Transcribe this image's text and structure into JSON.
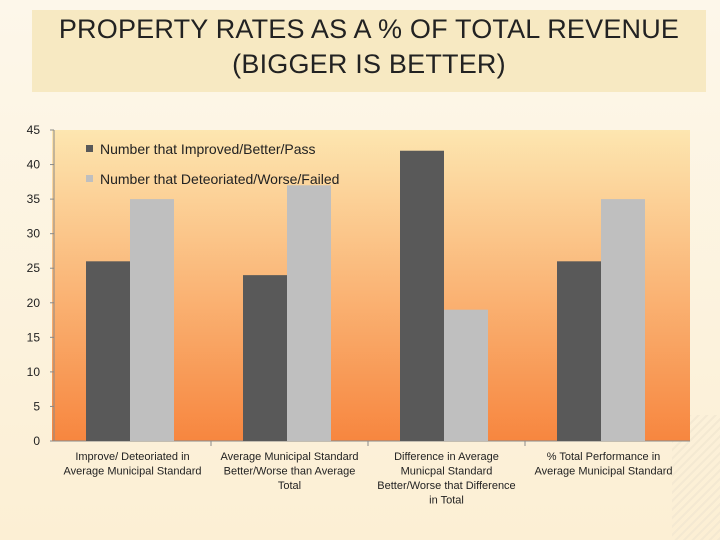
{
  "title": {
    "line1": "PROPERTY RATES AS A % OF TOTAL REVENUE",
    "line2": "(BIGGER IS BETTER)"
  },
  "chart_data": {
    "type": "bar",
    "categories": [
      [
        "Improve/ Deteoriated in",
        "Average Municipal Standard"
      ],
      [
        "Average Municipal Standard",
        "Better/Worse than Average",
        "Total"
      ],
      [
        "Difference in Average",
        "Municpal Standard",
        "Better/Worse that Difference",
        "in Total"
      ],
      [
        "% Total Performance in",
        "Average Municipal Standard"
      ]
    ],
    "series": [
      {
        "name": "Number that Improved/Better/Pass",
        "values": [
          26,
          24,
          42,
          26
        ],
        "color": "#595959"
      },
      {
        "name": "Number that Deteoriated/Worse/Failed",
        "values": [
          35,
          37,
          19,
          35
        ],
        "color": "#bfbfbf"
      }
    ],
    "ylim": [
      0,
      45
    ],
    "yticks": [
      0,
      5,
      10,
      15,
      20,
      25,
      30,
      35,
      40,
      45
    ],
    "legend_position": "top-left",
    "plot_background": [
      "#fde6b0",
      "#f7863f"
    ],
    "grid": false
  }
}
